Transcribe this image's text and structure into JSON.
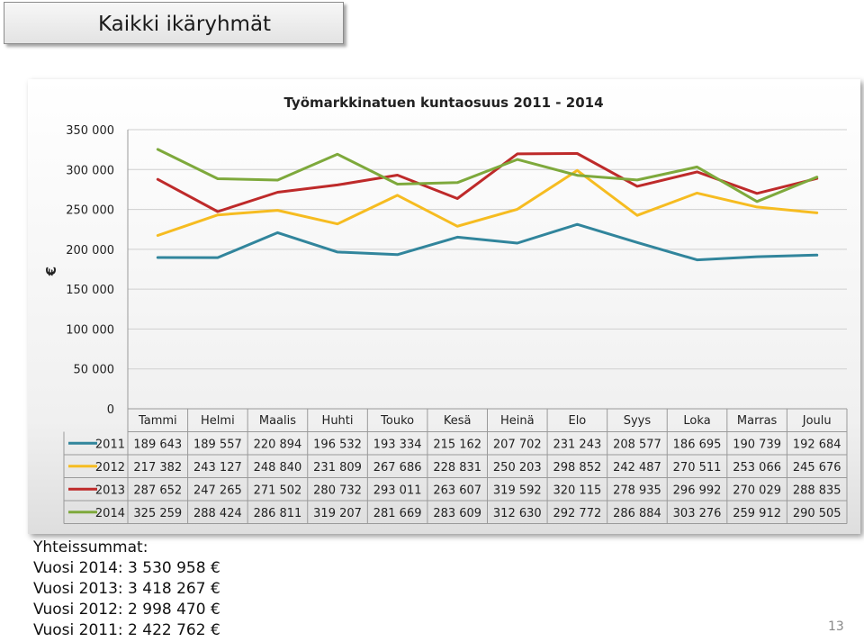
{
  "slide_title": "Kaikki ikäryhmät",
  "page_number": "13",
  "totals": {
    "heading": "Yhteissummat:",
    "lines": [
      "Vuosi 2014: 3 530 958 €",
      "Vuosi 2013: 3 418 267 €",
      "Vuosi 2012: 2 998 470 €",
      "Vuosi 2011: 2 422 762 €"
    ]
  },
  "chart_data": {
    "type": "line",
    "title": "Työmarkkinatuen kuntaosuus 2011 - 2014",
    "ylabel": "€",
    "xlabel": "",
    "ylim": [
      0,
      350000
    ],
    "yticks": [
      0,
      50000,
      100000,
      150000,
      200000,
      250000,
      300000,
      350000
    ],
    "ytick_labels": [
      "0",
      "50 000",
      "100 000",
      "150 000",
      "200 000",
      "250 000",
      "300 000",
      "350 000"
    ],
    "grid": true,
    "legend": "data-table",
    "categories": [
      "Tammi",
      "Helmi",
      "Maalis",
      "Huhti",
      "Touko",
      "Kesä",
      "Heinä",
      "Elo",
      "Syys",
      "Loka",
      "Marras",
      "Joulu"
    ],
    "series": [
      {
        "name": "2011",
        "color": "#31859c",
        "values": [
          189643,
          189557,
          220894,
          196532,
          193334,
          215162,
          207702,
          231243,
          208577,
          186695,
          190739,
          192684
        ],
        "labels": [
          "189 643",
          "189 557",
          "220 894",
          "196 532",
          "193 334",
          "215 162",
          "207 702",
          "231 243",
          "208 577",
          "186 695",
          "190 739",
          "192 684"
        ]
      },
      {
        "name": "2012",
        "color": "#f6bc21",
        "values": [
          217382,
          243127,
          248840,
          231809,
          267686,
          228831,
          250203,
          298852,
          242487,
          270511,
          253066,
          245676
        ],
        "labels": [
          "217 382",
          "243 127",
          "248 840",
          "231 809",
          "267 686",
          "228 831",
          "250 203",
          "298 852",
          "242 487",
          "270 511",
          "253 066",
          "245 676"
        ]
      },
      {
        "name": "2013",
        "color": "#be2a2a",
        "values": [
          287652,
          247265,
          271502,
          280732,
          293011,
          263607,
          319592,
          320115,
          278935,
          296992,
          270029,
          288835
        ],
        "labels": [
          "287 652",
          "247 265",
          "271 502",
          "280 732",
          "293 011",
          "263 607",
          "319 592",
          "320 115",
          "278 935",
          "296 992",
          "270 029",
          "288 835"
        ]
      },
      {
        "name": "2014",
        "color": "#7ea93c",
        "values": [
          325259,
          288424,
          286811,
          319207,
          281669,
          283609,
          312630,
          292772,
          286884,
          303276,
          259912,
          290505
        ],
        "labels": [
          "325 259",
          "288 424",
          "286 811",
          "319 207",
          "281 669",
          "283 609",
          "312 630",
          "292 772",
          "286 884",
          "303 276",
          "259 912",
          "290 505"
        ]
      }
    ]
  }
}
